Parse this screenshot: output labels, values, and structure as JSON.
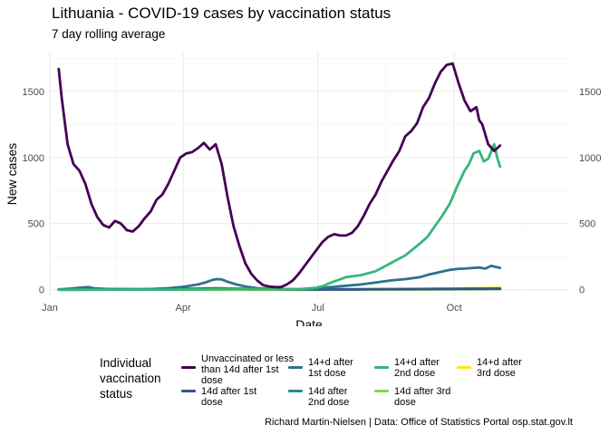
{
  "title": "Lithuania - COVID-19 cases by vaccination status",
  "subtitle": "7 day rolling average",
  "caption": "Richard Martin-Nielsen | Data: Office of Statistics Portal osp.stat.gov.lt",
  "legend_title": "Individual vaccination status",
  "chart_data": {
    "type": "line",
    "title": "Lithuania - COVID-19 cases by vaccination status",
    "subtitle": "7 day rolling average",
    "xlabel": "Date",
    "ylabel": "New cases",
    "xlim": [
      0,
      350
    ],
    "ylim": [
      -50,
      1800
    ],
    "x_unit": "day of year 2021",
    "x_ticks": [
      {
        "x": 0,
        "label": "Jan"
      },
      {
        "x": 90,
        "label": "Apr"
      },
      {
        "x": 181,
        "label": "Jul"
      },
      {
        "x": 273,
        "label": "Oct"
      }
    ],
    "y_ticks": [
      0,
      500,
      1000,
      1500
    ],
    "grid": true,
    "legend_position": "bottom",
    "series": [
      {
        "name": "Unvaccinated or less than 14d after 1st dose",
        "color": "#440154",
        "x": [
          6,
          8,
          12,
          16,
          20,
          24,
          28,
          32,
          36,
          40,
          44,
          48,
          52,
          56,
          60,
          64,
          68,
          72,
          76,
          80,
          84,
          88,
          92,
          96,
          100,
          104,
          108,
          112,
          116,
          120,
          124,
          128,
          132,
          136,
          140,
          144,
          148,
          152,
          156,
          160,
          164,
          168,
          172,
          176,
          180,
          184,
          188,
          192,
          196,
          200,
          204,
          208,
          212,
          216,
          220,
          224,
          228,
          232,
          236,
          240,
          244,
          248,
          252,
          256,
          260,
          264,
          268,
          272,
          276,
          280,
          284,
          288,
          290,
          292,
          296,
          300,
          304
        ],
        "y": [
          1670,
          1450,
          1100,
          950,
          900,
          800,
          650,
          550,
          490,
          470,
          520,
          500,
          450,
          440,
          480,
          540,
          590,
          680,
          720,
          800,
          900,
          1000,
          1030,
          1040,
          1070,
          1110,
          1060,
          1100,
          950,
          700,
          480,
          330,
          200,
          120,
          70,
          35,
          25,
          20,
          20,
          40,
          70,
          120,
          180,
          240,
          300,
          360,
          400,
          420,
          410,
          410,
          430,
          480,
          560,
          650,
          720,
          820,
          900,
          980,
          1050,
          1160,
          1200,
          1260,
          1380,
          1450,
          1560,
          1650,
          1700,
          1710,
          1560,
          1430,
          1350,
          1380,
          1280,
          1250,
          1100,
          1050,
          1090
        ]
      },
      {
        "name": "14d after 1st dose",
        "color": "#3b528b",
        "x": [
          6,
          20,
          40,
          60,
          80,
          90,
          100,
          110,
          115,
          120,
          130,
          140,
          150,
          160,
          180,
          200,
          220,
          240,
          260,
          270,
          280,
          290,
          300,
          304
        ],
        "y": [
          3,
          5,
          5,
          4,
          5,
          6,
          8,
          10,
          10,
          9,
          7,
          5,
          4,
          3,
          3,
          3,
          4,
          5,
          6,
          6,
          7,
          7,
          7,
          7
        ]
      },
      {
        "name": "14+d after 1st dose",
        "color": "#2c728e",
        "x": [
          6,
          10,
          16,
          20,
          26,
          30,
          40,
          60,
          70,
          80,
          90,
          100,
          105,
          110,
          113,
          116,
          120,
          126,
          132,
          140,
          150,
          160,
          170,
          180,
          190,
          200,
          210,
          220,
          230,
          240,
          250,
          256,
          260,
          266,
          270,
          276,
          280,
          286,
          290,
          294,
          298,
          302,
          304
        ],
        "y": [
          2,
          5,
          10,
          15,
          20,
          10,
          5,
          4,
          6,
          12,
          22,
          40,
          55,
          75,
          80,
          78,
          60,
          40,
          25,
          12,
          6,
          4,
          5,
          10,
          20,
          30,
          40,
          55,
          70,
          80,
          95,
          115,
          125,
          140,
          150,
          158,
          160,
          165,
          168,
          160,
          180,
          170,
          165
        ]
      },
      {
        "name": "14d after 2nd dose",
        "color": "#21908d",
        "x": [
          6,
          40,
          80,
          100,
          120,
          140,
          160,
          180,
          200,
          220,
          240,
          260,
          280,
          300,
          304
        ],
        "y": [
          0,
          1,
          2,
          4,
          6,
          5,
          4,
          3,
          3,
          4,
          5,
          6,
          7,
          8,
          8
        ]
      },
      {
        "name": "14+d after 2nd dose",
        "color": "#35b779",
        "x": [
          6,
          80,
          100,
          120,
          140,
          160,
          170,
          180,
          185,
          190,
          195,
          200,
          210,
          220,
          230,
          240,
          250,
          255,
          260,
          265,
          270,
          275,
          280,
          283,
          286,
          290,
          293,
          296,
          300,
          302,
          304
        ],
        "y": [
          0,
          1,
          3,
          5,
          5,
          4,
          6,
          15,
          30,
          55,
          75,
          95,
          110,
          140,
          200,
          260,
          350,
          400,
          480,
          560,
          650,
          780,
          900,
          950,
          1030,
          1050,
          970,
          990,
          1100,
          1000,
          930
        ]
      },
      {
        "name": "14d after 3rd dose",
        "color": "#8fd744",
        "x": [
          6,
          200,
          250,
          270,
          280,
          290,
          300,
          304
        ],
        "y": [
          0,
          0,
          1,
          2,
          3,
          3,
          4,
          4
        ]
      },
      {
        "name": "14+d after 3rd dose",
        "color": "#fde725",
        "x": [
          6,
          200,
          250,
          260,
          270,
          280,
          290,
          300,
          304
        ],
        "y": [
          0,
          0,
          1,
          3,
          6,
          10,
          12,
          15,
          16
        ]
      }
    ]
  },
  "legend_items": [
    {
      "label": "Unvaccinated or less than 14d after 1st dose",
      "color": "#440154"
    },
    {
      "label": "14d after 1st dose",
      "color": "#3b528b"
    },
    {
      "label": "14+d after 1st dose",
      "color": "#2c728e"
    },
    {
      "label": "14d after 2nd dose",
      "color": "#21908d"
    },
    {
      "label": "14+d after 2nd dose",
      "color": "#35b779"
    },
    {
      "label": "14d after 3rd dose",
      "color": "#8fd744"
    },
    {
      "label": "14+d after 3rd dose",
      "color": "#fde725"
    }
  ]
}
